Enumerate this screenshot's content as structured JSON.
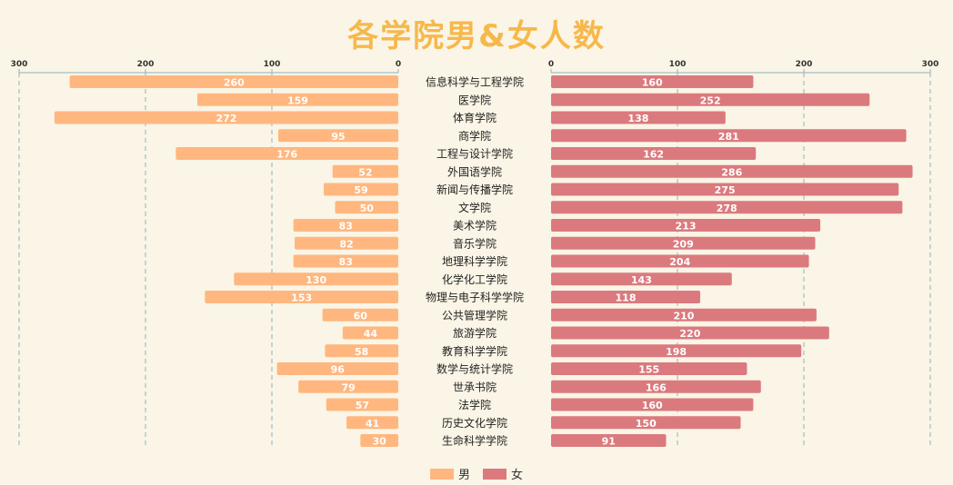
{
  "title": "各学院男&女人数",
  "chart_data": {
    "type": "bar",
    "layout": "butterfly",
    "categories": [
      "信息科学与工程学院",
      "医学院",
      "体育学院",
      "商学院",
      "工程与设计学院",
      "外国语学院",
      "新闻与传播学院",
      "文学院",
      "美术学院",
      "音乐学院",
      "地理科学学院",
      "化学化工学院",
      "物理与电子科学学院",
      "公共管理学院",
      "旅游学院",
      "教育科学学院",
      "数学与统计学院",
      "世承书院",
      "法学院",
      "历史文化学院",
      "生命科学学院"
    ],
    "series": [
      {
        "name": "男",
        "color": "#ffb77f",
        "values": [
          260,
          159,
          272,
          95,
          176,
          52,
          59,
          50,
          83,
          82,
          83,
          130,
          153,
          60,
          44,
          58,
          96,
          79,
          57,
          41,
          30
        ]
      },
      {
        "name": "女",
        "color": "#db7a7e",
        "values": [
          160,
          252,
          138,
          281,
          162,
          286,
          275,
          278,
          213,
          209,
          204,
          143,
          118,
          210,
          220,
          198,
          155,
          166,
          160,
          150,
          91
        ]
      }
    ],
    "left_axis": {
      "ticks": [
        300,
        200,
        100,
        0
      ],
      "range": [
        0,
        300
      ]
    },
    "right_axis": {
      "ticks": [
        0,
        100,
        200,
        300
      ],
      "range": [
        0,
        300
      ]
    },
    "grid": true,
    "legend": "bottom"
  }
}
